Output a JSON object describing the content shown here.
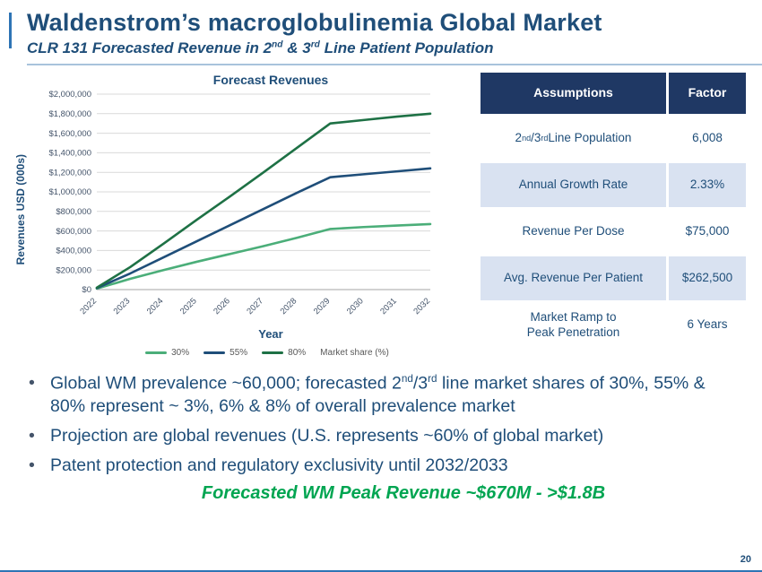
{
  "slide": {
    "title": "Waldenstrom’s macroglobulinemia Global Market",
    "subtitle_html": "CLR 131 Forecasted Revenue in 2<sup>nd</sup> & 3<sup>rd</sup> Line Patient Population",
    "page_number": "20"
  },
  "chart_data": {
    "type": "line",
    "title": "Forecast Revenues",
    "xlabel": "Year",
    "ylabel": "Revenues  USD (000s)",
    "x": [
      2022,
      2023,
      2024,
      2025,
      2026,
      2027,
      2028,
      2029,
      2030,
      2031,
      2032
    ],
    "series": [
      {
        "name": "30%",
        "color": "#4BAE79",
        "values": [
          10000,
          110000,
          200000,
          285000,
          365000,
          445000,
          530000,
          620000,
          640000,
          655000,
          670000
        ]
      },
      {
        "name": "55%",
        "color": "#1F4E79",
        "values": [
          15000,
          165000,
          330000,
          495000,
          660000,
          825000,
          990000,
          1150000,
          1180000,
          1210000,
          1240000
        ]
      },
      {
        "name": "80%",
        "color": "#1E7145",
        "values": [
          20000,
          230000,
          470000,
          715000,
          955000,
          1200000,
          1450000,
          1700000,
          1735000,
          1770000,
          1800000
        ]
      }
    ],
    "legend_note": "Market share (%)",
    "ylim": [
      0,
      2000000
    ],
    "y_tick_step": 200000,
    "grid": true,
    "legend_position": "bottom"
  },
  "assumptions_table": {
    "headers": [
      "Assumptions",
      "Factor"
    ],
    "rows": [
      {
        "label_html": "2<sup>nd</sup>/3<sup>rd</sup> Line Population",
        "value": "6,008"
      },
      {
        "label_html": "Annual Growth Rate",
        "value": "2.33%"
      },
      {
        "label_html": "Revenue Per Dose",
        "value": "$75,000"
      },
      {
        "label_html": "Avg. Revenue Per Patient",
        "value": "$262,500"
      },
      {
        "label_html": "Market Ramp to<br>Peak Penetration",
        "value": "6 Years"
      }
    ]
  },
  "bullets": [
    "Global WM prevalence ~60,000; forecasted 2<sup>nd</sup>/3<sup>rd</sup> line market shares of 30%, 55% & 80% represent ~ 3%, 6% & 8% of overall prevalence market",
    "Projection are global revenues (U.S. represents ~60% of global market)",
    "Patent protection and regulatory exclusivity until 2032/2033"
  ],
  "footer": {
    "highlight": "Forecasted WM Peak Revenue ~$670M - >$1.8B"
  },
  "colors": {
    "accent": "#1F4E79",
    "table_header": "#1F3864",
    "row_alt": "#D9E2F1",
    "green": "#00A551"
  }
}
